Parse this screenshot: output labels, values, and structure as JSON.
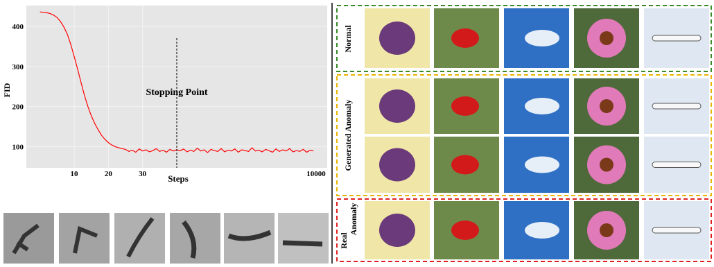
{
  "chart_data": {
    "type": "line",
    "xlabel": "Steps",
    "ylabel": "FID",
    "color": "#ff0000",
    "x": [
      0,
      1,
      2,
      3,
      4,
      5,
      6,
      7,
      8,
      9,
      10,
      11,
      12,
      13,
      14,
      15,
      16,
      17,
      18,
      19,
      20,
      21,
      22,
      23,
      24,
      25,
      26,
      27,
      28,
      29,
      30,
      31,
      32,
      33,
      34,
      35,
      36,
      37,
      38,
      39,
      40,
      41,
      42,
      43,
      44,
      45,
      46,
      47,
      48,
      49,
      50,
      51,
      52,
      53,
      54,
      55,
      56,
      57,
      58,
      59,
      60,
      61,
      62,
      63,
      64,
      65,
      66,
      67,
      68,
      69,
      70,
      71,
      72,
      73,
      74,
      75,
      76,
      77,
      78,
      79,
      80
    ],
    "values": [
      436,
      435,
      434,
      432,
      428,
      422,
      412,
      398,
      380,
      355,
      325,
      293,
      260,
      228,
      200,
      177,
      158,
      142,
      128,
      118,
      110,
      104,
      100,
      97,
      95,
      93,
      88,
      91,
      86,
      94,
      89,
      92,
      87,
      90,
      95,
      88,
      91,
      86,
      93,
      89,
      92,
      90,
      94,
      87,
      91,
      88,
      96,
      89,
      92,
      85,
      93,
      90,
      88,
      95,
      87,
      91,
      89,
      94,
      86,
      92,
      90,
      88,
      97,
      89,
      91,
      87,
      93,
      90,
      86,
      94,
      88,
      92,
      89,
      95,
      87,
      90,
      88,
      93,
      86,
      91,
      89
    ],
    "xlim": [
      -4,
      84
    ],
    "xticks": [
      10,
      20,
      30
    ],
    "x_end_label": "10000",
    "ylim": [
      47,
      452
    ],
    "yticks": [
      100,
      200,
      300,
      400
    ],
    "grid": true,
    "annotation": {
      "text": "Stopping Point",
      "x": 40
    }
  },
  "panels": {
    "normal": "Normal",
    "generated": "Generated Anomaly",
    "real": "Real",
    "anomaly": "Anomaly"
  }
}
